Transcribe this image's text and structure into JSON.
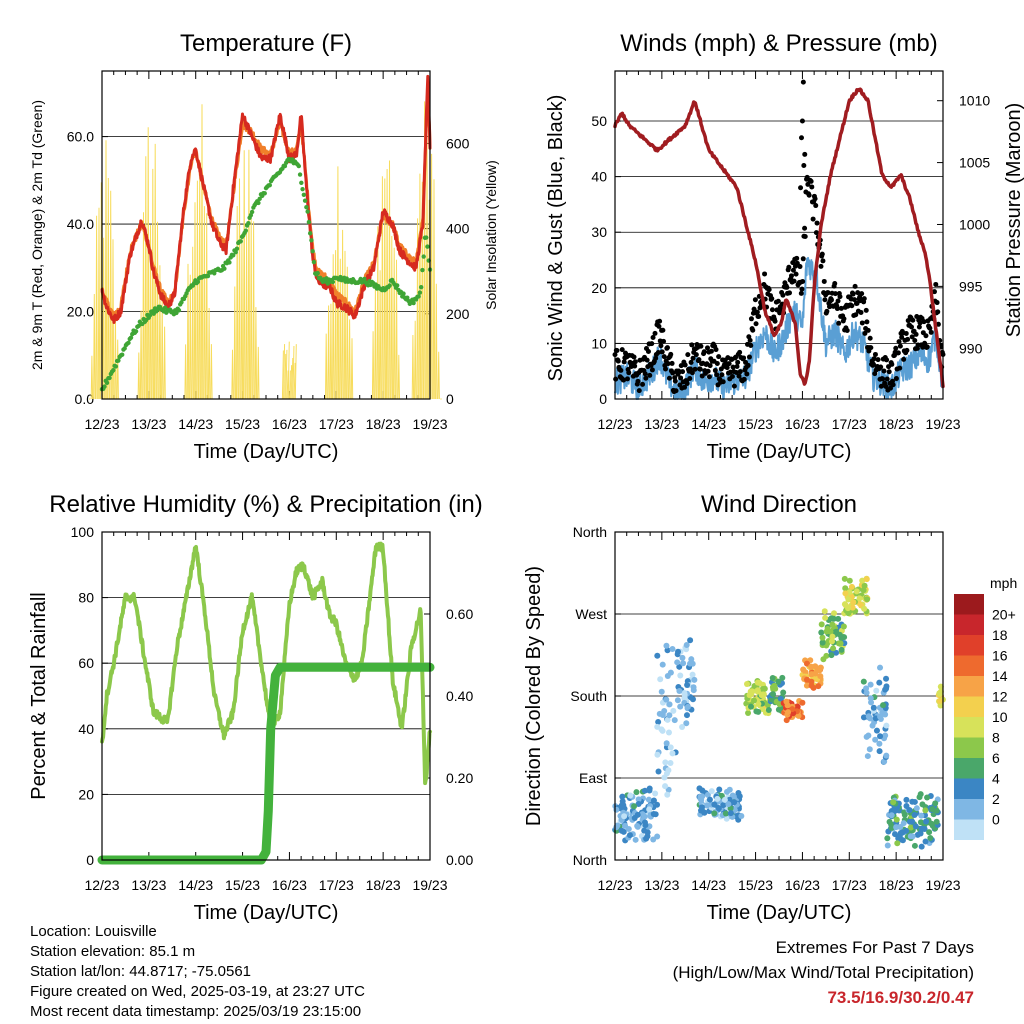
{
  "chart_data": [
    {
      "type": "line",
      "title": "Temperature (F)",
      "xlabel": "Time (Day/UTC)",
      "ylabel": "2m & 9m T (Red, Orange) & 2m Td (Green)",
      "ylabel_right": "Solar Insolation (Yellow)",
      "x_ticks": [
        "12/23",
        "13/23",
        "14/23",
        "15/23",
        "16/23",
        "17/23",
        "18/23",
        "19/23"
      ],
      "y_ticks": [
        "0.0",
        "20.0",
        "40.0",
        "60.0"
      ],
      "y2_ticks": [
        "0",
        "200",
        "400",
        "600"
      ],
      "ylim": [
        0,
        75
      ],
      "y2lim": [
        0,
        770
      ],
      "grid": true,
      "series": [
        {
          "name": "2m T",
          "color": "#d62a1f",
          "x": [
            0,
            0.1,
            0.25,
            0.4,
            0.6,
            0.85,
            1.0,
            1.1,
            1.25,
            1.4,
            1.55,
            1.75,
            1.9,
            2.0,
            2.2,
            2.35,
            2.5,
            2.65,
            2.8,
            3.0,
            3.2,
            3.4,
            3.6,
            3.8,
            4.0,
            4.15,
            4.25,
            4.35,
            4.5,
            4.6,
            4.75,
            4.85,
            5.0,
            5.2,
            5.4,
            5.6,
            5.8,
            6.0,
            6.2,
            6.35,
            6.5,
            6.7,
            6.85,
            6.95,
            7.0
          ],
          "values": [
            25,
            21,
            18,
            20,
            33,
            41,
            35,
            29,
            24,
            21,
            24,
            44,
            55,
            57,
            47,
            40,
            36,
            34,
            48,
            65,
            60,
            55,
            55,
            65,
            55,
            56,
            65,
            50,
            32,
            27,
            26,
            26,
            22,
            21,
            19,
            26,
            30,
            43,
            40,
            34,
            32,
            30,
            40,
            74,
            57
          ]
        },
        {
          "name": "9m T",
          "color": "#f07f2a",
          "x": [
            0,
            0.1,
            0.25,
            0.4,
            0.6,
            0.85,
            1.0,
            1.1,
            1.25,
            1.4,
            1.55,
            1.75,
            1.9,
            2.0,
            2.2,
            2.35,
            2.5,
            2.65,
            2.8,
            3.0,
            3.2,
            3.4,
            3.6,
            3.8,
            4.0,
            4.15,
            4.25,
            4.35,
            4.5,
            4.6,
            4.75,
            4.85,
            5.0,
            5.2,
            5.4,
            5.6,
            5.8,
            6.0,
            6.2,
            6.35,
            6.5,
            6.7,
            6.85,
            6.95,
            7.0
          ],
          "values": [
            25,
            22,
            19,
            21,
            34,
            40,
            35,
            30,
            25,
            22,
            24,
            43,
            54,
            57,
            47,
            41,
            37,
            35,
            47,
            63,
            61,
            57,
            56,
            63,
            56,
            57,
            63,
            51,
            34,
            29,
            28,
            27,
            24,
            22,
            20,
            27,
            31,
            42,
            40,
            35,
            33,
            31,
            41,
            72,
            58
          ]
        },
        {
          "name": "2m Td",
          "color": "#3fa535",
          "x": [
            0,
            0.2,
            0.4,
            0.6,
            0.8,
            1.0,
            1.2,
            1.4,
            1.6,
            1.8,
            2.0,
            2.2,
            2.4,
            2.6,
            2.8,
            3.0,
            3.2,
            3.5,
            3.8,
            4.0,
            4.2,
            4.4,
            4.55,
            4.7,
            4.9,
            5.0,
            5.2,
            5.4,
            5.6,
            5.8,
            6.0,
            6.2,
            6.4,
            6.6,
            6.8,
            6.9,
            7.0
          ],
          "values": [
            2,
            6,
            10,
            14,
            17,
            19,
            21,
            20,
            20,
            24,
            27,
            28,
            29,
            30,
            33,
            37,
            43,
            48,
            52,
            55,
            53,
            42,
            29,
            27,
            27,
            28,
            27,
            27,
            27,
            26,
            25,
            27,
            24,
            22,
            24,
            38,
            30
          ]
        },
        {
          "name": "Solar Insolation",
          "color": "#f7dc5c",
          "axis": "right",
          "days": [
            0,
            1,
            2,
            3,
            5,
            6,
            6.85
          ],
          "peaks": [
            650,
            740,
            750,
            740,
            660,
            720,
            780
          ]
        }
      ]
    },
    {
      "type": "line",
      "title": "Winds (mph) & Pressure (mb)",
      "xlabel": "Time (Day/UTC)",
      "ylabel": "Sonic Wind & Gust (Blue, Black)",
      "ylabel_right": "Station Pressure (Maroon)",
      "x_ticks": [
        "12/23",
        "13/23",
        "14/23",
        "15/23",
        "16/23",
        "17/23",
        "18/23",
        "19/23"
      ],
      "y_ticks": [
        "0",
        "10",
        "20",
        "30",
        "40",
        "50"
      ],
      "y2_ticks": [
        "990",
        "995",
        "1000",
        "1005",
        "1010"
      ],
      "ylim": [
        0,
        59
      ],
      "y2lim": [
        985.9,
        1012.4
      ],
      "grid": true,
      "series": [
        {
          "name": "Station Pressure",
          "color": "#a01c20",
          "x": [
            0,
            0.15,
            0.3,
            0.6,
            0.9,
            1.2,
            1.5,
            1.7,
            1.85,
            2.0,
            2.2,
            2.4,
            2.6,
            2.8,
            3.0,
            3.2,
            3.4,
            3.55,
            3.65,
            3.75,
            3.85,
            3.95,
            4.05,
            4.15,
            4.25,
            4.4,
            4.6,
            4.8,
            5.0,
            5.2,
            5.4,
            5.55,
            5.7,
            5.9,
            6.1,
            6.3,
            6.5,
            6.6,
            6.7,
            6.8,
            6.9,
            6.97,
            7.0
          ],
          "values": [
            1008,
            1009,
            1008,
            1007,
            1006,
            1007,
            1008,
            1010,
            1008,
            1006,
            1005,
            1004,
            1003,
            1000,
            997,
            993,
            991,
            992,
            994,
            993,
            992,
            988,
            987,
            989,
            995,
            1000,
            1004,
            1007,
            1010,
            1011,
            1010,
            1007,
            1004,
            1003,
            1004,
            1002,
            999,
            998,
            996,
            993,
            990,
            988,
            987
          ]
        },
        {
          "name": "Sonic Wind",
          "color": "#5a9fd4",
          "x": [
            0,
            0.25,
            0.5,
            0.8,
            0.95,
            1.1,
            1.3,
            1.5,
            1.7,
            1.9,
            2.1,
            2.3,
            2.5,
            2.8,
            3.0,
            3.2,
            3.4,
            3.6,
            3.8,
            4.0,
            4.1,
            4.3,
            4.5,
            4.7,
            4.9,
            5.1,
            5.3,
            5.5,
            5.7,
            5.9,
            6.1,
            6.3,
            6.5,
            6.7,
            6.85,
            6.95,
            7.0
          ],
          "values": [
            3,
            4,
            2,
            5,
            8,
            4,
            1,
            2,
            6,
            3,
            4,
            2,
            3,
            4,
            9,
            12,
            8,
            11,
            16,
            13,
            25,
            22,
            10,
            12,
            8,
            12,
            10,
            4,
            3,
            2,
            5,
            6,
            8,
            7,
            12,
            5,
            3
          ]
        },
        {
          "name": "Gust",
          "color": "#000000",
          "x": [
            0,
            0.25,
            0.5,
            0.8,
            0.95,
            1.1,
            1.3,
            1.5,
            1.7,
            1.9,
            2.1,
            2.3,
            2.5,
            2.8,
            3.0,
            3.2,
            3.4,
            3.6,
            3.8,
            4.0,
            4.1,
            4.3,
            4.5,
            4.7,
            4.9,
            5.1,
            5.3,
            5.5,
            5.7,
            5.9,
            6.1,
            6.3,
            6.5,
            6.7,
            6.85,
            6.95,
            7.0
          ],
          "values": [
            6,
            6,
            4,
            8,
            12,
            7,
            3,
            4,
            8,
            6,
            7,
            4,
            5,
            6,
            16,
            20,
            14,
            18,
            24,
            20,
            40,
            32,
            18,
            18,
            14,
            18,
            16,
            7,
            5,
            4,
            9,
            12,
            12,
            11,
            18,
            9,
            5
          ]
        }
      ]
    },
    {
      "type": "line",
      "title": "Relative Humidity (%) & Precipitation (in)",
      "xlabel": "Time (Day/UTC)",
      "ylabel": "Percent & Total Rainfall",
      "x_ticks": [
        "12/23",
        "13/23",
        "14/23",
        "15/23",
        "16/23",
        "17/23",
        "18/23",
        "19/23"
      ],
      "y_ticks": [
        "0",
        "20",
        "40",
        "60",
        "80",
        "100"
      ],
      "y2_ticks": [
        "0.00",
        "0.20",
        "0.40",
        "0.60"
      ],
      "ylim": [
        0,
        100
      ],
      "y2lim": [
        0,
        0.8
      ],
      "grid": true,
      "series": [
        {
          "name": "Relative Humidity",
          "color": "#8cc84b",
          "x": [
            0,
            0.1,
            0.25,
            0.5,
            0.7,
            0.9,
            1.1,
            1.4,
            1.6,
            1.8,
            2.0,
            2.2,
            2.4,
            2.6,
            2.8,
            3.0,
            3.2,
            3.4,
            3.6,
            3.8,
            4.0,
            4.15,
            4.3,
            4.5,
            4.7,
            4.85,
            5.0,
            5.2,
            5.4,
            5.55,
            5.7,
            5.85,
            6.0,
            6.2,
            6.4,
            6.6,
            6.8,
            6.9,
            7.0
          ],
          "values": [
            35,
            50,
            60,
            80,
            80,
            62,
            45,
            42,
            65,
            80,
            96,
            75,
            50,
            38,
            45,
            70,
            80,
            60,
            40,
            45,
            78,
            88,
            90,
            80,
            85,
            75,
            72,
            60,
            55,
            60,
            78,
            96,
            95,
            55,
            40,
            65,
            76,
            22,
            40
          ]
        },
        {
          "name": "Total Precipitation",
          "color": "#43b23c",
          "axis": "right",
          "x": [
            0,
            3.4,
            3.5,
            3.55,
            3.6,
            3.7,
            3.8,
            7.0
          ],
          "values": [
            0,
            0,
            0.02,
            0.12,
            0.32,
            0.45,
            0.47,
            0.47
          ]
        }
      ]
    },
    {
      "type": "scatter",
      "title": "Wind Direction",
      "xlabel": "Time (Day/UTC)",
      "ylabel": "Direction (Colored By Speed)",
      "x_ticks": [
        "12/23",
        "13/23",
        "14/23",
        "15/23",
        "16/23",
        "17/23",
        "18/23",
        "19/23"
      ],
      "y_ticks": [
        "North",
        "East",
        "South",
        "West",
        "North"
      ],
      "ylim": [
        0,
        360
      ],
      "grid": true,
      "colorbar": {
        "title": "mph",
        "labels": [
          "20+",
          "18",
          "16",
          "14",
          "12",
          "10",
          "8",
          "6",
          "4",
          "2",
          "0"
        ],
        "colors": [
          "#9c1a1d",
          "#c8262c",
          "#e0402a",
          "#ee6a2e",
          "#f7a347",
          "#f3d04e",
          "#d7e25a",
          "#8cc84b",
          "#4aa76a",
          "#3b86c4",
          "#7fb7e4",
          "#bfe1f6"
        ]
      },
      "series": [
        {
          "day_start": 0.0,
          "day_end": 0.9,
          "dir_center": 50,
          "dir_spread": 35,
          "speed": 4
        },
        {
          "day_start": 0.9,
          "day_end": 1.3,
          "dir_center": 160,
          "dir_spread": 120,
          "speed": 2
        },
        {
          "day_start": 1.3,
          "day_end": 1.7,
          "dir_center": 200,
          "dir_spread": 60,
          "speed": 3
        },
        {
          "day_start": 1.8,
          "day_end": 2.7,
          "dir_center": 60,
          "dir_spread": 20,
          "speed": 4
        },
        {
          "day_start": 2.8,
          "day_end": 3.3,
          "dir_center": 180,
          "dir_spread": 25,
          "speed": 10
        },
        {
          "day_start": 3.3,
          "day_end": 3.6,
          "dir_center": 180,
          "dir_spread": 25,
          "speed": 7
        },
        {
          "day_start": 3.6,
          "day_end": 4.0,
          "dir_center": 165,
          "dir_spread": 12,
          "speed": 17
        },
        {
          "day_start": 4.0,
          "day_end": 4.4,
          "dir_center": 205,
          "dir_spread": 20,
          "speed": 15
        },
        {
          "day_start": 4.4,
          "day_end": 4.9,
          "dir_center": 245,
          "dir_spread": 35,
          "speed": 8
        },
        {
          "day_start": 4.9,
          "day_end": 5.4,
          "dir_center": 290,
          "dir_spread": 25,
          "speed": 11
        },
        {
          "day_start": 5.3,
          "day_end": 5.8,
          "dir_center": 160,
          "dir_spread": 60,
          "speed": 4
        },
        {
          "day_start": 5.8,
          "day_end": 6.9,
          "dir_center": 45,
          "dir_spread": 35,
          "speed": 6
        },
        {
          "day_start": 6.9,
          "day_end": 7.0,
          "dir_center": 180,
          "dir_spread": 15,
          "speed": 12
        }
      ]
    }
  ],
  "info": {
    "location": "Location: Louisville",
    "elevation": "Station elevation: 85.1 m",
    "latlon": "Station lat/lon: 44.8717; -75.0561",
    "created": "Figure created on Wed, 2025-03-19, at 23:27 UTC",
    "timestamp": "Most recent data timestamp: 2025/03/19 23:15:00"
  },
  "extremes": {
    "heading": "Extremes For Past 7 Days",
    "subheading": "(High/Low/Max Wind/Total Precipitation)",
    "values": "73.5/16.9/30.2/0.47"
  }
}
